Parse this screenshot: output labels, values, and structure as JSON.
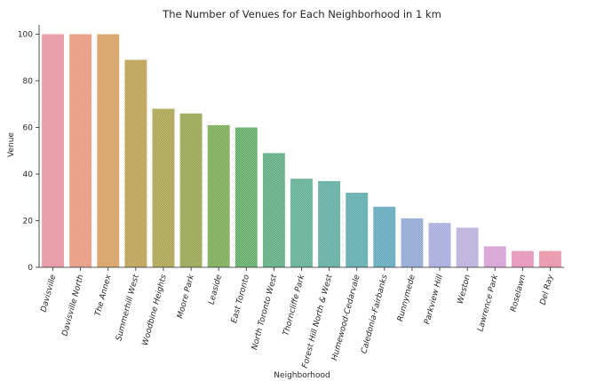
{
  "chart_data": {
    "type": "bar",
    "title": "The Number of Venues for Each Neighborhood in 1 km",
    "xlabel": "Neighborhood",
    "ylabel": "Venue",
    "ylim": [
      0,
      104
    ],
    "yticks": [
      0,
      20,
      40,
      60,
      80,
      100
    ],
    "grid": false,
    "categories": [
      "Davisville",
      "Davisville North",
      "The Annex",
      "Summerhill West",
      "Woodbine Heights",
      "Moore Park",
      "Leaside",
      "East Toronto",
      "North Toronto West",
      "Thorncliffe Park",
      "Forest Hill North & West",
      "Humewood-Cedarvale",
      "Caledonia-Fairbanks",
      "Runnymede",
      "Parkview Hill",
      "Weston",
      "Lawrence Park",
      "Roselawn",
      "Del Ray"
    ],
    "values": [
      100,
      100,
      100,
      89,
      68,
      66,
      61,
      60,
      49,
      38,
      37,
      32,
      26,
      21,
      19,
      17,
      9,
      7,
      7
    ],
    "colors": [
      "#e8919c",
      "#e6957a",
      "#d49b5a",
      "#b99d4b",
      "#a7a049",
      "#93a24a",
      "#76a84f",
      "#5aa960",
      "#58aa7e",
      "#5aab8f",
      "#5aa99d",
      "#59a8a9",
      "#5ca5b8",
      "#8ca5d0",
      "#a4a7db",
      "#b8acd9",
      "#d39cd2",
      "#e48fb7",
      "#e98fa5"
    ]
  }
}
